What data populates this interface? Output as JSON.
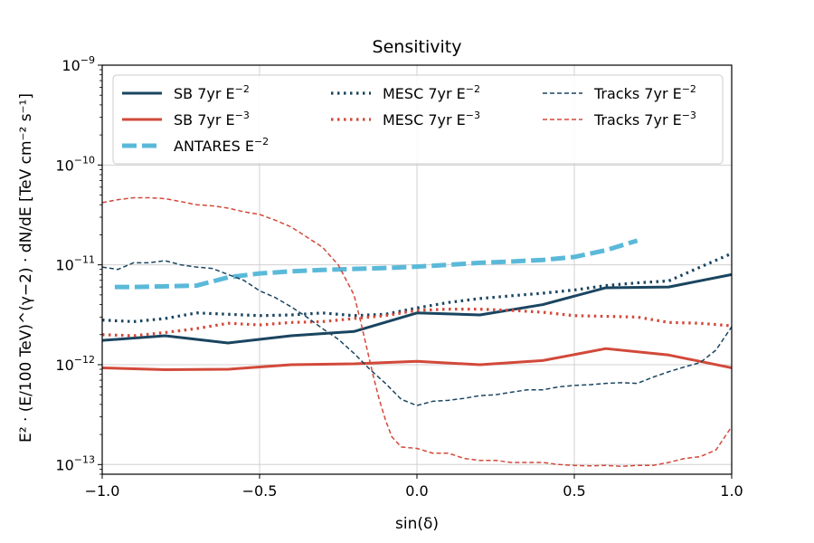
{
  "chart_data": {
    "type": "line",
    "title": "Sensitivity",
    "xlabel": "sin(δ)",
    "ylabel": "E² · (E/100 TeV)^(γ−2) · dN/dE  [TeV cm⁻² s⁻¹]",
    "xlim": [
      -1.0,
      1.0
    ],
    "ylim": [
      8e-14,
      1e-09
    ],
    "yscale": "log",
    "grid": true,
    "legend_position": "top",
    "x_ticks": [
      "−1.0",
      "−0.5",
      "0.0",
      "0.5",
      "1.0"
    ],
    "x_tick_values": [
      -1.0,
      -0.5,
      0.0,
      0.5,
      1.0
    ],
    "y_ticks": [
      {
        "base": "10",
        "exp": "−13"
      },
      {
        "base": "10",
        "exp": "−12"
      },
      {
        "base": "10",
        "exp": "−11"
      },
      {
        "base": "10",
        "exp": "−10"
      },
      {
        "base": "10",
        "exp": "−9"
      }
    ],
    "y_tick_values": [
      1e-13,
      1e-12,
      1e-11,
      1e-10,
      1e-09
    ],
    "series": [
      {
        "name": "SB 7yr E^−2",
        "label_main": "SB 7yr E",
        "label_exp": "−2",
        "color": "#1a4560",
        "style": "solid",
        "x": [
          -1.0,
          -0.8,
          -0.6,
          -0.4,
          -0.2,
          0.0,
          0.2,
          0.4,
          0.6,
          0.8,
          1.0
        ],
        "y": [
          1.75e-12,
          1.95e-12,
          1.65e-12,
          1.95e-12,
          2.15e-12,
          3.3e-12,
          3.15e-12,
          4e-12,
          5.9e-12,
          6e-12,
          8e-12
        ]
      },
      {
        "name": "SB 7yr E^−3",
        "label_main": "SB 7yr E",
        "label_exp": "−3",
        "color": "#d2493a",
        "style": "solid",
        "x": [
          -1.0,
          -0.8,
          -0.6,
          -0.4,
          -0.2,
          0.0,
          0.2,
          0.4,
          0.6,
          0.8,
          1.0
        ],
        "y": [
          9.3e-13,
          8.9e-13,
          9e-13,
          1e-12,
          1.02e-12,
          1.08e-12,
          1e-12,
          1.1e-12,
          1.45e-12,
          1.25e-12,
          9.3e-13
        ]
      },
      {
        "name": "ANTARES E^−2",
        "label_main": "ANTARES E",
        "label_exp": "−2",
        "color": "#5ab9d9",
        "style": "dash-thick",
        "x": [
          -0.96,
          -0.9,
          -0.8,
          -0.7,
          -0.6,
          -0.5,
          -0.4,
          -0.3,
          -0.2,
          -0.1,
          0.0,
          0.1,
          0.2,
          0.3,
          0.4,
          0.5,
          0.6,
          0.7
        ],
        "y": [
          6e-12,
          6e-12,
          6.1e-12,
          6.2e-12,
          7.5e-12,
          8.2e-12,
          8.6e-12,
          8.9e-12,
          9.1e-12,
          9.3e-12,
          9.6e-12,
          1e-11,
          1.05e-11,
          1.08e-11,
          1.12e-11,
          1.2e-11,
          1.4e-11,
          1.75e-11
        ]
      },
      {
        "name": "MESC 7yr E^−2",
        "label_main": "MESC 7yr E",
        "label_exp": "−2",
        "color": "#1a4560",
        "style": "dotted",
        "x": [
          -1.0,
          -0.9,
          -0.8,
          -0.7,
          -0.6,
          -0.5,
          -0.4,
          -0.3,
          -0.2,
          -0.1,
          0.0,
          0.1,
          0.2,
          0.3,
          0.4,
          0.5,
          0.6,
          0.7,
          0.8,
          0.9,
          1.0
        ],
        "y": [
          2.8e-12,
          2.7e-12,
          2.9e-12,
          3.3e-12,
          3.2e-12,
          3.1e-12,
          3.15e-12,
          3.3e-12,
          3.1e-12,
          3.2e-12,
          3.7e-12,
          4.2e-12,
          4.6e-12,
          4.9e-12,
          5.2e-12,
          5.6e-12,
          6.2e-12,
          6.6e-12,
          6.9e-12,
          9.5e-12,
          1.3e-11
        ]
      },
      {
        "name": "MESC 7yr E^−3",
        "label_main": "MESC 7yr E",
        "label_exp": "−3",
        "color": "#d2493a",
        "style": "dotted",
        "x": [
          -1.0,
          -0.9,
          -0.8,
          -0.7,
          -0.6,
          -0.5,
          -0.4,
          -0.3,
          -0.2,
          -0.1,
          0.0,
          0.1,
          0.2,
          0.3,
          0.4,
          0.5,
          0.6,
          0.7,
          0.8,
          0.9,
          1.0
        ],
        "y": [
          2e-12,
          1.95e-12,
          2.1e-12,
          2.3e-12,
          2.6e-12,
          2.5e-12,
          2.65e-12,
          2.7e-12,
          2.9e-12,
          3.1e-12,
          3.5e-12,
          3.6e-12,
          3.6e-12,
          3.5e-12,
          3.35e-12,
          3.1e-12,
          3.05e-12,
          3e-12,
          2.65e-12,
          2.6e-12,
          2.45e-12
        ]
      },
      {
        "name": "Tracks 7yr E^−2",
        "label_main": "Tracks 7yr E",
        "label_exp": "−2",
        "color": "#1a4560",
        "style": "dashed",
        "x": [
          -1.0,
          -0.95,
          -0.9,
          -0.85,
          -0.8,
          -0.75,
          -0.7,
          -0.65,
          -0.6,
          -0.55,
          -0.5,
          -0.45,
          -0.4,
          -0.35,
          -0.3,
          -0.25,
          -0.2,
          -0.15,
          -0.1,
          -0.05,
          0.0,
          0.05,
          0.1,
          0.15,
          0.2,
          0.25,
          0.3,
          0.35,
          0.4,
          0.45,
          0.5,
          0.55,
          0.6,
          0.65,
          0.7,
          0.75,
          0.8,
          0.85,
          0.9,
          0.95,
          1.0
        ],
        "y": [
          9.5e-12,
          9e-12,
          1.05e-11,
          1.05e-11,
          1.1e-11,
          1e-11,
          9.5e-12,
          9.2e-12,
          8e-12,
          7e-12,
          5.5e-12,
          4.7e-12,
          3.8e-12,
          3e-12,
          2.3e-12,
          1.8e-12,
          1.3e-12,
          9e-13,
          6.5e-13,
          4.5e-13,
          3.9e-13,
          4.3e-13,
          4.4e-13,
          4.6e-13,
          4.9e-13,
          5e-13,
          5.3e-13,
          5.6e-13,
          5.6e-13,
          6e-13,
          6.2e-13,
          6.3e-13,
          6.5e-13,
          6.6e-13,
          6.5e-13,
          7.5e-13,
          8.5e-13,
          9.5e-13,
          1.05e-12,
          1.4e-12,
          2.4e-12
        ]
      },
      {
        "name": "Tracks 7yr E^−3",
        "label_main": "Tracks 7yr E",
        "label_exp": "−3",
        "color": "#d2493a",
        "style": "dashed",
        "x": [
          -1.0,
          -0.95,
          -0.9,
          -0.85,
          -0.8,
          -0.75,
          -0.7,
          -0.65,
          -0.6,
          -0.55,
          -0.5,
          -0.45,
          -0.4,
          -0.35,
          -0.3,
          -0.25,
          -0.2,
          -0.18,
          -0.16,
          -0.14,
          -0.12,
          -0.1,
          -0.08,
          -0.05,
          0.0,
          0.05,
          0.1,
          0.15,
          0.2,
          0.25,
          0.3,
          0.35,
          0.4,
          0.45,
          0.5,
          0.55,
          0.6,
          0.65,
          0.7,
          0.75,
          0.8,
          0.85,
          0.9,
          0.95,
          1.0
        ],
        "y": [
          4.2e-11,
          4.5e-11,
          4.7e-11,
          4.7e-11,
          4.6e-11,
          4.3e-11,
          4e-11,
          3.9e-11,
          3.7e-11,
          3.4e-11,
          3.2e-11,
          2.8e-11,
          2.4e-11,
          1.9e-11,
          1.5e-11,
          1e-11,
          5e-12,
          2.8e-12,
          1.5e-12,
          8e-13,
          4.5e-13,
          2.8e-13,
          1.9e-13,
          1.5e-13,
          1.45e-13,
          1.3e-13,
          1.3e-13,
          1.15e-13,
          1.1e-13,
          1.1e-13,
          1.05e-13,
          1.05e-13,
          1.05e-13,
          1e-13,
          9.8e-14,
          9.7e-14,
          9.8e-14,
          9.6e-14,
          9.8e-14,
          9.8e-14,
          1.05e-13,
          1.15e-13,
          1.2e-13,
          1.4e-13,
          2.4e-13
        ]
      }
    ]
  }
}
